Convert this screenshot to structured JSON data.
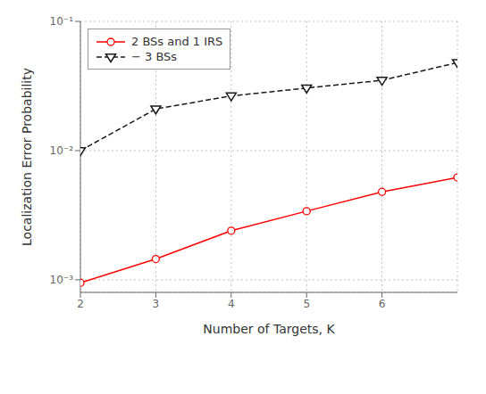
{
  "chart_data": {
    "type": "line",
    "x": [
      2,
      3,
      4,
      5,
      6,
      7
    ],
    "series": [
      {
        "name": "2 BSs and 1 IRS",
        "color": "#FF0000",
        "values": [
          0.00095,
          0.00145,
          0.0024,
          0.0034,
          0.0048,
          0.0062
        ],
        "marker": "circle",
        "line_style": "solid"
      },
      {
        "name": "− 3 BSs",
        "color": "#1a1a1a",
        "values": [
          0.01,
          0.021,
          0.0265,
          0.0305,
          0.035,
          0.048
        ],
        "marker": "triangle-down",
        "line_style": "dashed"
      }
    ],
    "xlabel": "Number of Targets,  K",
    "ylabel": "Localization Error Probability",
    "xlim": [
      2,
      7
    ],
    "xticks": [
      2,
      3,
      4,
      5,
      6
    ],
    "ylim": [
      0.0008,
      0.1
    ],
    "yticks": [
      {
        "value": 0.001,
        "label": "10⁻³"
      },
      {
        "value": 0.01,
        "label": "10⁻²"
      },
      {
        "value": 0.1,
        "label": "10⁻¹"
      }
    ],
    "log": "y",
    "grid": true,
    "legend": "upper left"
  }
}
